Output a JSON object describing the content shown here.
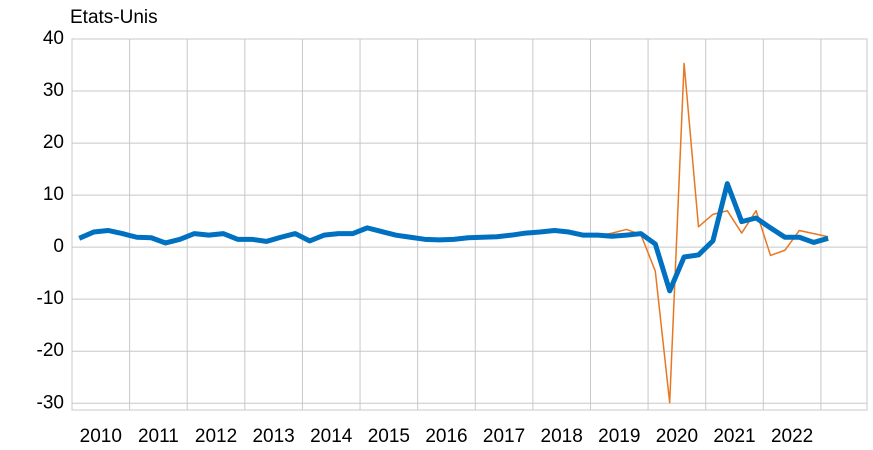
{
  "chart_data": {
    "type": "line",
    "title": "Etats-Unis",
    "x": [
      2010.125,
      2010.375,
      2010.625,
      2010.875,
      2011.125,
      2011.375,
      2011.625,
      2011.875,
      2012.125,
      2012.375,
      2012.625,
      2012.875,
      2013.125,
      2013.375,
      2013.625,
      2013.875,
      2014.125,
      2014.375,
      2014.625,
      2014.875,
      2015.125,
      2015.375,
      2015.625,
      2015.875,
      2016.125,
      2016.375,
      2016.625,
      2016.875,
      2017.125,
      2017.375,
      2017.625,
      2017.875,
      2018.125,
      2018.375,
      2018.625,
      2018.875,
      2019.125,
      2019.375,
      2019.625,
      2019.875,
      2020.125,
      2020.375,
      2020.625,
      2020.875,
      2021.125,
      2021.375,
      2021.625,
      2021.875,
      2022.125,
      2022.375,
      2022.625,
      2022.875,
      2023.125
    ],
    "series": [
      {
        "color": "#e87722",
        "width": 1.5,
        "values": [
          null,
          null,
          null,
          null,
          null,
          null,
          null,
          null,
          null,
          null,
          null,
          null,
          null,
          null,
          null,
          null,
          null,
          null,
          null,
          null,
          null,
          null,
          null,
          null,
          null,
          null,
          null,
          null,
          null,
          null,
          null,
          null,
          null,
          null,
          null,
          null,
          2.2,
          2.7,
          3.4,
          2.4,
          -4.6,
          -29.9,
          35.3,
          3.9,
          6.3,
          7.0,
          2.7,
          7.0,
          -1.6,
          -0.6,
          3.2,
          2.6,
          2.0
        ]
      },
      {
        "color": "#0070c0",
        "width": 5,
        "values": [
          1.7,
          2.9,
          3.2,
          2.6,
          1.9,
          1.8,
          0.8,
          1.5,
          2.6,
          2.3,
          2.6,
          1.5,
          1.5,
          1.1,
          1.9,
          2.6,
          1.2,
          2.3,
          2.6,
          2.6,
          3.7,
          3.0,
          2.3,
          1.9,
          1.5,
          1.4,
          1.5,
          1.8,
          1.9,
          2.0,
          2.3,
          2.7,
          2.9,
          3.2,
          2.9,
          2.3,
          2.3,
          2.1,
          2.3,
          2.6,
          0.6,
          -8.4,
          -1.9,
          -1.5,
          1.2,
          12.2,
          4.9,
          5.6,
          3.7,
          1.9,
          1.9,
          0.9,
          1.7
        ]
      }
    ],
    "xlim": [
      2010,
      2023.8
    ],
    "xticks": [
      {
        "value": 2010,
        "label": "2010"
      },
      {
        "value": 2011,
        "label": "2011"
      },
      {
        "value": 2012,
        "label": "2012"
      },
      {
        "value": 2013,
        "label": "2013"
      },
      {
        "value": 2014,
        "label": "2014"
      },
      {
        "value": 2015,
        "label": "2015"
      },
      {
        "value": 2016,
        "label": "2016"
      },
      {
        "value": 2017,
        "label": "2017"
      },
      {
        "value": 2018,
        "label": "2018"
      },
      {
        "value": 2019,
        "label": "2019"
      },
      {
        "value": 2020,
        "label": "2020"
      },
      {
        "value": 2021,
        "label": "2021"
      },
      {
        "value": 2022,
        "label": "2022"
      }
    ],
    "ylim": [
      -31.3,
      40
    ],
    "yticks": [
      -30,
      -20,
      -10,
      0,
      10,
      20,
      30,
      40
    ],
    "grid": true
  }
}
